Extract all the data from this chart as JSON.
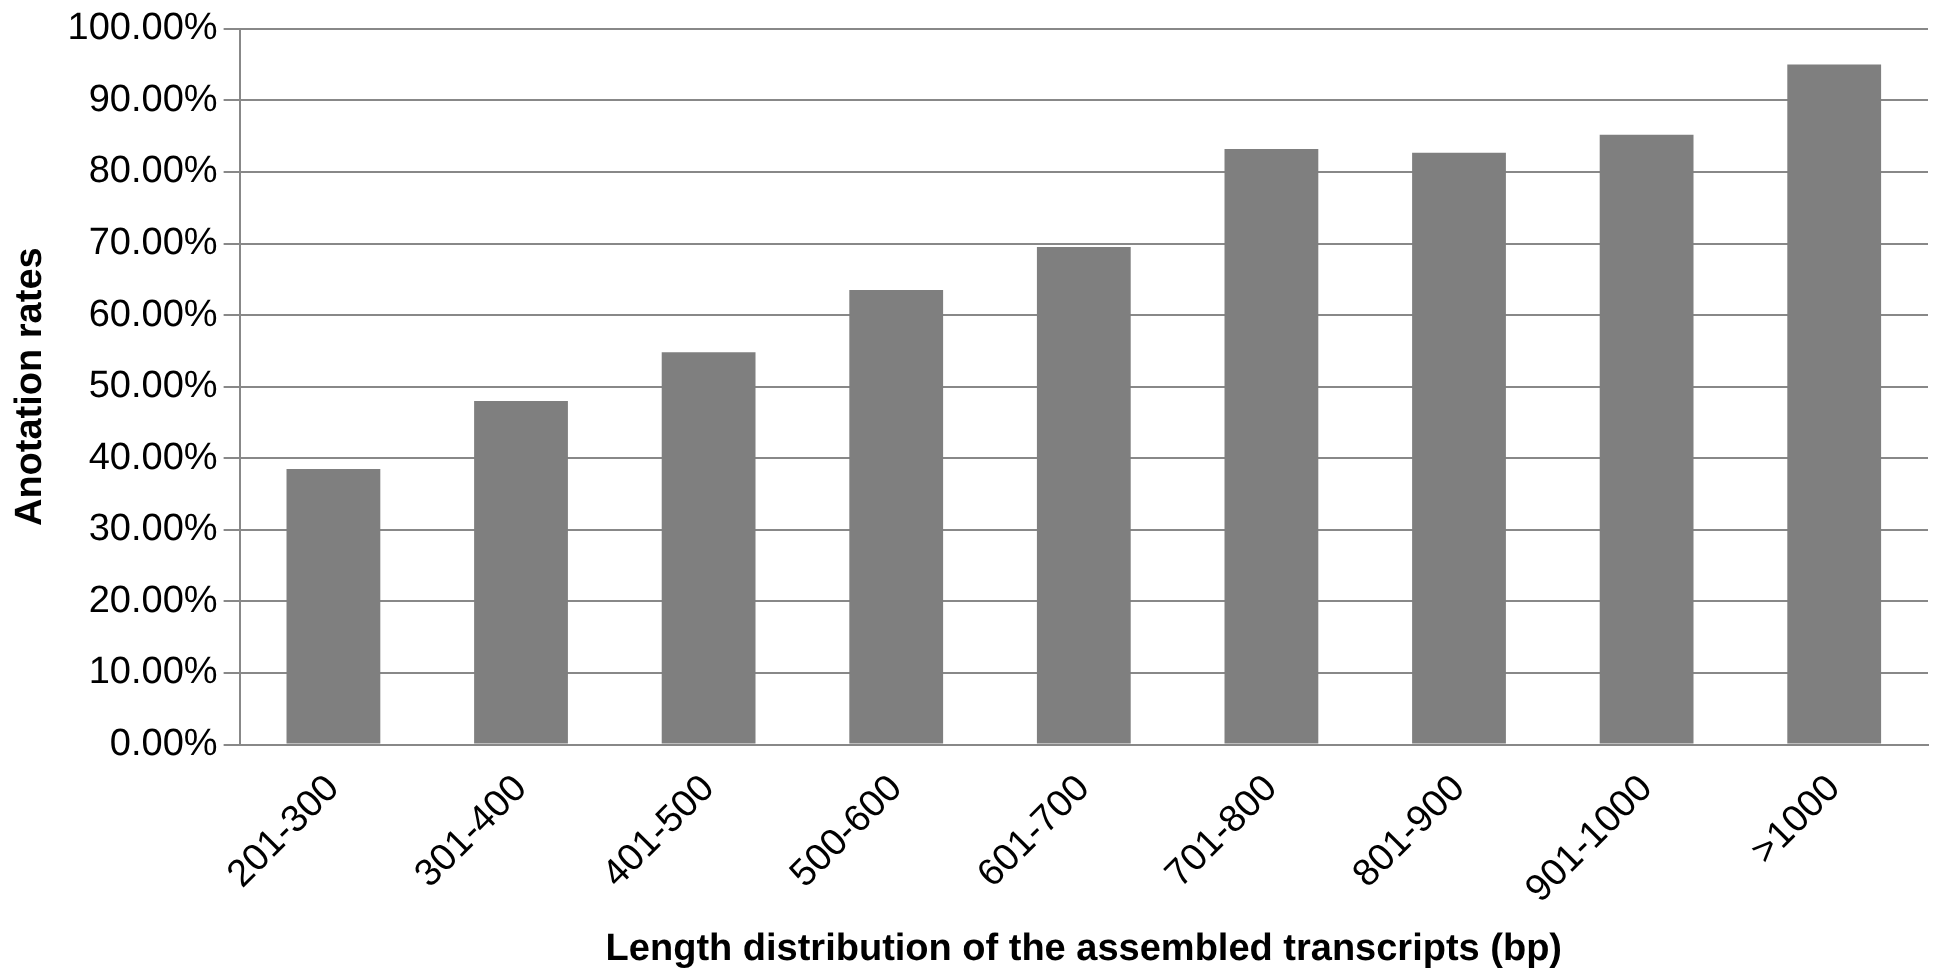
{
  "chart_data": {
    "type": "bar",
    "xlabel": "Length distribution of the assembled transcripts (bp)",
    "ylabel": "Anotation rates",
    "categories": [
      "201-300",
      "301-400",
      "401-500",
      "500-600",
      "601-700",
      "701-800",
      "801-900",
      "901-1000",
      ">1000"
    ],
    "values": [
      38.5,
      48,
      54.8,
      63.5,
      69.5,
      83.2,
      82.7,
      85.2,
      95
    ],
    "color": "#7f7f7f",
    "ylim": [
      0,
      100
    ],
    "yticks": [
      {
        "value": 0,
        "label": "0.00%"
      },
      {
        "value": 10,
        "label": "10.00%"
      },
      {
        "value": 20,
        "label": "20.00%"
      },
      {
        "value": 30,
        "label": "30.00%"
      },
      {
        "value": 40,
        "label": "40.00%"
      },
      {
        "value": 50,
        "label": "50.00%"
      },
      {
        "value": 60,
        "label": "60.00%"
      },
      {
        "value": 70,
        "label": "70.00%"
      },
      {
        "value": 80,
        "label": "80.00%"
      },
      {
        "value": 90,
        "label": "90.00%"
      },
      {
        "value": 100,
        "label": "100.00%"
      }
    ],
    "grid": "y"
  }
}
